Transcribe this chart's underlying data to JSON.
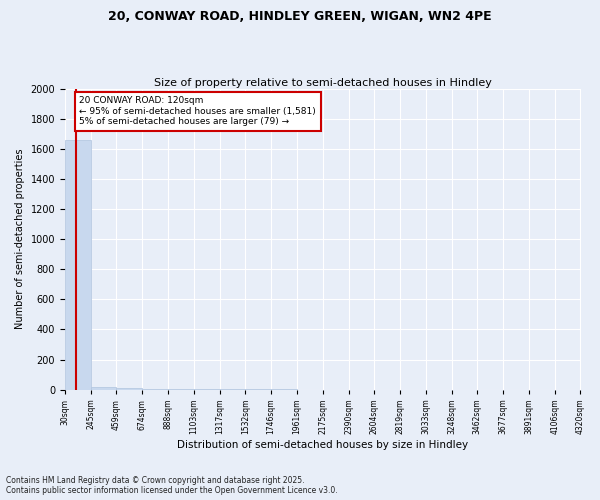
{
  "title": "20, CONWAY ROAD, HINDLEY GREEN, WIGAN, WN2 4PE",
  "subtitle": "Size of property relative to semi-detached houses in Hindley",
  "xlabel": "Distribution of semi-detached houses by size in Hindley",
  "ylabel": "Number of semi-detached properties",
  "annotation_title": "20 CONWAY ROAD: 120sqm",
  "annotation_line1": "← 95% of semi-detached houses are smaller (1,581)",
  "annotation_line2": "5% of semi-detached houses are larger (79) →",
  "footnote1": "Contains HM Land Registry data © Crown copyright and database right 2025.",
  "footnote2": "Contains public sector information licensed under the Open Government Licence v3.0.",
  "property_size": 120,
  "bar_color": "#c8d8ee",
  "bar_edge_color": "#b0c4de",
  "property_line_color": "#cc0000",
  "annotation_box_color": "#cc0000",
  "background_color": "#e8eef8",
  "bin_edges": [
    30,
    245,
    459,
    674,
    888,
    1103,
    1317,
    1532,
    1746,
    1961,
    2175,
    2390,
    2604,
    2819,
    3033,
    3248,
    3462,
    3677,
    3891,
    4106,
    4320
  ],
  "bin_labels": [
    "30sqm",
    "245sqm",
    "459sqm",
    "674sqm",
    "888sqm",
    "1103sqm",
    "1317sqm",
    "1532sqm",
    "1746sqm",
    "1961sqm",
    "2175sqm",
    "2390sqm",
    "2604sqm",
    "2819sqm",
    "3033sqm",
    "3248sqm",
    "3462sqm",
    "3677sqm",
    "3891sqm",
    "4106sqm",
    "4320sqm"
  ],
  "counts": [
    1660,
    15,
    8,
    3,
    2,
    2,
    2,
    2,
    2,
    1,
    1,
    1,
    1,
    1,
    1,
    1,
    1,
    1,
    1,
    1
  ],
  "ylim": [
    0,
    2000
  ],
  "yticks": [
    0,
    200,
    400,
    600,
    800,
    1000,
    1200,
    1400,
    1600,
    1800,
    2000
  ],
  "title_fontsize": 9,
  "subtitle_fontsize": 8
}
